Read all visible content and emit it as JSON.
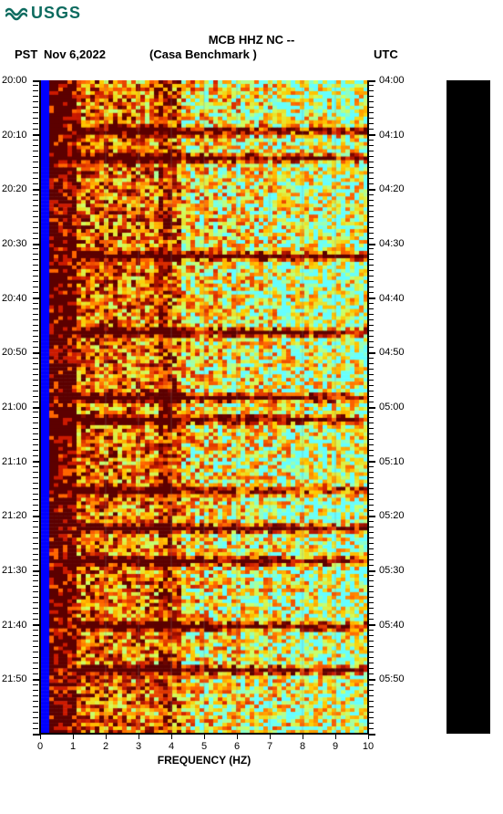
{
  "logo": {
    "text": "USGS"
  },
  "header": {
    "title_line": "MCB HHZ NC --",
    "pst": "PST",
    "date": "Nov 6,2022",
    "station": "(Casa Benchmark )",
    "utc": "UTC"
  },
  "x_axis": {
    "label": "FREQUENCY (HZ)",
    "ticks": [
      0,
      1,
      2,
      3,
      4,
      5,
      6,
      7,
      8,
      9,
      10
    ],
    "xlim": [
      0,
      10
    ]
  },
  "y_axis_left": {
    "ticks": [
      "20:00",
      "20:10",
      "20:20",
      "20:30",
      "20:40",
      "20:50",
      "21:00",
      "21:10",
      "21:20",
      "21:30",
      "21:40",
      "21:50"
    ]
  },
  "y_axis_right": {
    "ticks": [
      "04:00",
      "04:10",
      "04:20",
      "04:30",
      "04:40",
      "04:50",
      "05:00",
      "05:10",
      "05:20",
      "05:30",
      "05:40",
      "05:50"
    ]
  },
  "spectrogram": {
    "type": "heatmap",
    "time_minutes": 120,
    "freq_bins": 72,
    "time_bins": 180,
    "colors": {
      "low_edge_blue": "#0000ff",
      "deep_red": "#5c0000",
      "red": "#cc1a00",
      "orange": "#ff6600",
      "yellow": "#ffcc00",
      "lime": "#ccff66",
      "cyan": "#66ffff",
      "background": "#ffffff",
      "grid_line": "#888888"
    },
    "blue_strip_freq_hz": [
      0,
      0.15
    ],
    "dark_band_freq_hz": [
      0.15,
      1.0
    ],
    "grid_vertical_lines_hz": [
      2,
      3,
      4,
      5,
      6,
      7,
      8,
      9
    ],
    "horizontal_dark_streaks_approx_min": [
      9,
      14,
      32,
      46,
      58,
      62,
      75,
      82,
      88,
      100,
      108
    ],
    "label_fontsize": 11,
    "title_fontsize": 13,
    "axis_label_fontsize": 12
  },
  "colorbar": {
    "background": "#000000"
  }
}
